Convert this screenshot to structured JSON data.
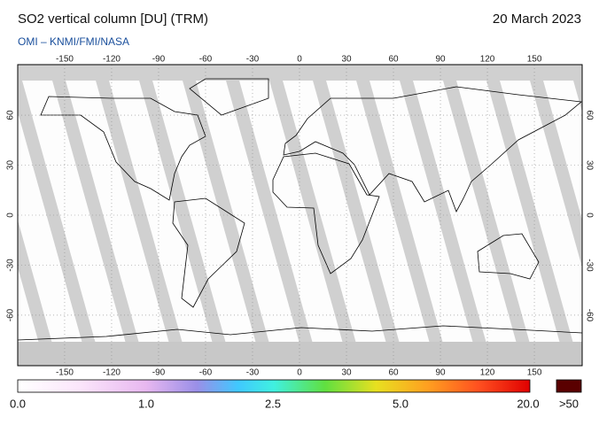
{
  "header": {
    "title": "SO2 vertical column [DU] (TRM)",
    "date": "20 March 2023",
    "source": "OMI  –  KNMI/FMI/NASA"
  },
  "map": {
    "lon_ticks": [
      -150,
      -120,
      -90,
      -60,
      -30,
      0,
      30,
      60,
      90,
      120,
      150
    ],
    "lat_ticks": [
      60,
      30,
      0,
      -30,
      -60
    ]
  },
  "colorbar": {
    "labels": [
      "0.0",
      "1.0",
      "2.5",
      "5.0",
      "20.0"
    ],
    "overflow_label": ">50"
  }
}
